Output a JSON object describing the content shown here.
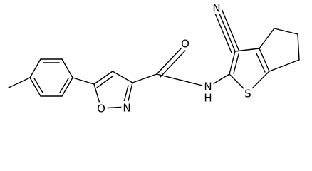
{
  "atoms": [
    {
      "label": "N"
    },
    {
      "label": "O"
    },
    {
      "label": "N"
    },
    {
      "label": "H"
    },
    {
      "label": "S"
    },
    {
      "label": "O"
    },
    {
      "label": "N"
    }
  ]
}
